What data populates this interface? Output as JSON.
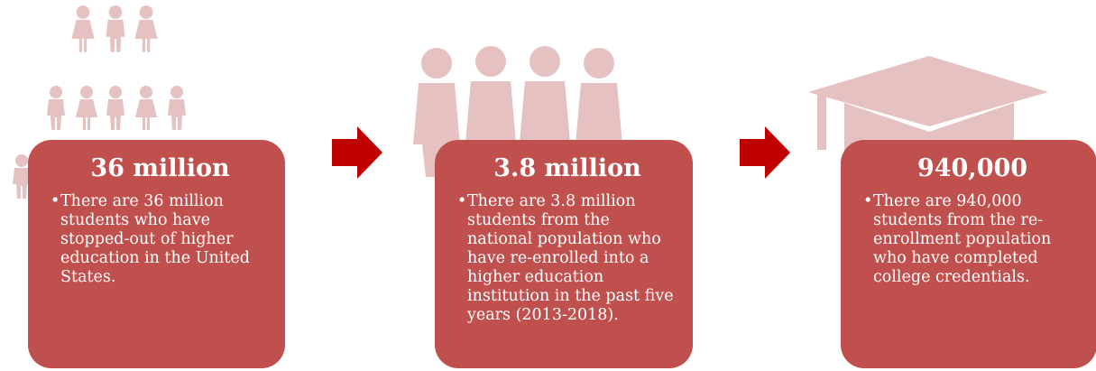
{
  "colors": {
    "card_fill": "#c0504d",
    "arrow_fill": "#c00000",
    "icon_fill": "#e6c1c1",
    "text": "#ffffff"
  },
  "icons": [
    "people-crowd-icon",
    "people-group-icon",
    "graduation-cap-icon"
  ],
  "stages": [
    {
      "title": "36 million",
      "text": "There are 36 million students who have stopped-out of higher education in the United States."
    },
    {
      "title": "3.8 million",
      "text": "There are 3.8 million students from the national population who have re-enrolled into a higher education institution in the past five years (2013-2018)."
    },
    {
      "title": "940,000",
      "text": "There are 940,000 students from the re-enrollment population who have completed college credentials."
    }
  ]
}
